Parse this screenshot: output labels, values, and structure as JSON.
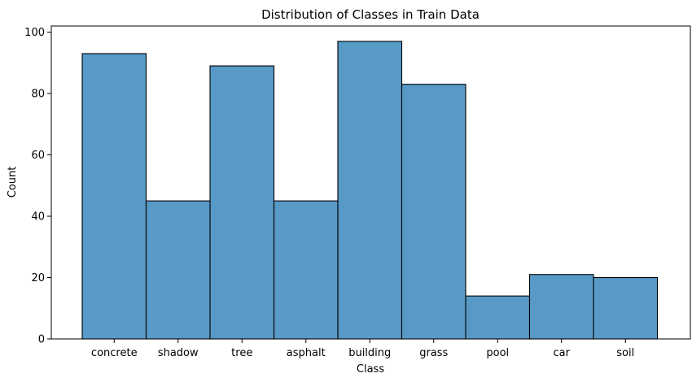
{
  "chart_data": {
    "type": "bar",
    "title": "Distribution of Classes in Train Data",
    "xlabel": "Class",
    "ylabel": "Count",
    "categories": [
      "concrete",
      "shadow",
      "tree",
      "asphalt",
      "building",
      "grass",
      "pool",
      "car",
      "soil"
    ],
    "values": [
      93,
      45,
      89,
      45,
      97,
      83,
      14,
      21,
      20
    ],
    "ylim": [
      0,
      102
    ],
    "yticks": [
      0,
      20,
      40,
      60,
      80,
      100
    ],
    "grid": false,
    "legend": "none",
    "colors": {
      "bar_fill": "#5799c7",
      "bar_edge": "#000000",
      "axes": "#000000",
      "background": "#ffffff"
    }
  }
}
